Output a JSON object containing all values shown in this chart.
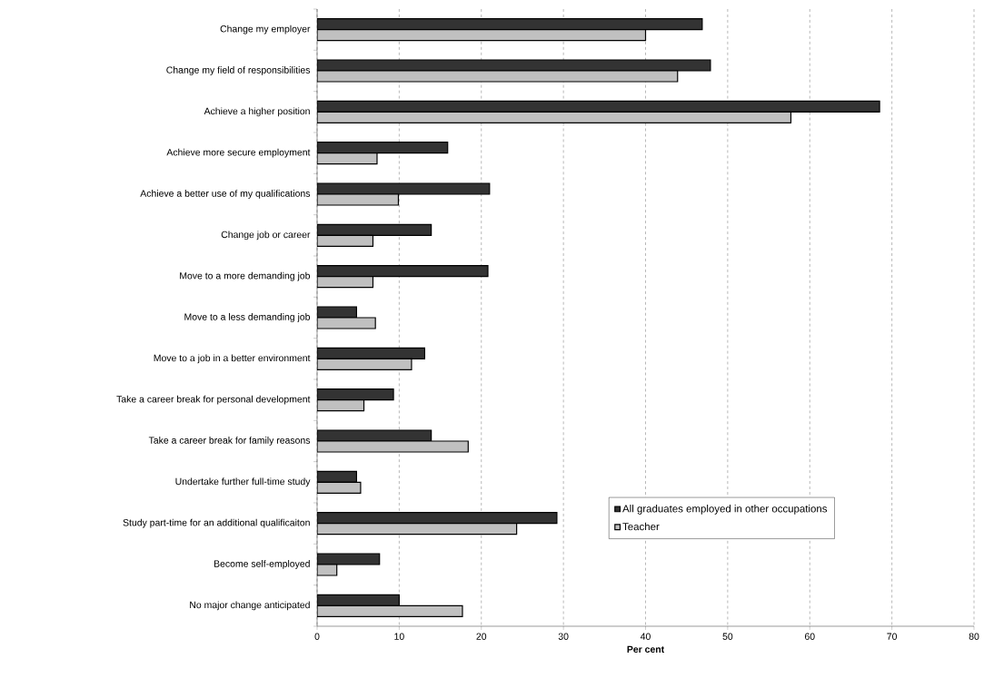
{
  "chart_data": {
    "type": "bar",
    "orientation": "horizontal",
    "xlabel": "Per cent",
    "categories": [
      "Change my employer",
      "Change my field of responsibilities",
      "Achieve a higher position",
      "Achieve more secure employment",
      "Achieve a better use of my qualifications",
      "Change job or career",
      "Move to a more demanding job",
      "Move to a less demanding job",
      "Move to a job in a better environment",
      "Take a career break for personal development",
      "Take a career break for family reasons",
      "Undertake further full-time study",
      "Study part-time for an additional qualificaiton",
      "Become self-employed",
      "No major change anticipated"
    ],
    "series": [
      {
        "name": "All graduates employed in other occupations",
        "color": "#333333",
        "values": [
          46.9,
          47.9,
          68.5,
          15.9,
          21.0,
          13.9,
          20.8,
          4.8,
          13.1,
          9.3,
          13.9,
          4.8,
          29.2,
          7.6,
          10.0
        ]
      },
      {
        "name": "Teacher",
        "color": "#c0c0c0",
        "values": [
          40.0,
          43.9,
          57.7,
          7.3,
          9.9,
          6.8,
          6.8,
          7.1,
          11.5,
          5.7,
          18.4,
          5.3,
          24.3,
          2.4,
          17.7
        ]
      }
    ],
    "xlim": [
      0,
      80
    ],
    "xticks": [
      0,
      10,
      20,
      30,
      40,
      50,
      60,
      70,
      80
    ],
    "grid": "x",
    "legend": "bottom right"
  }
}
